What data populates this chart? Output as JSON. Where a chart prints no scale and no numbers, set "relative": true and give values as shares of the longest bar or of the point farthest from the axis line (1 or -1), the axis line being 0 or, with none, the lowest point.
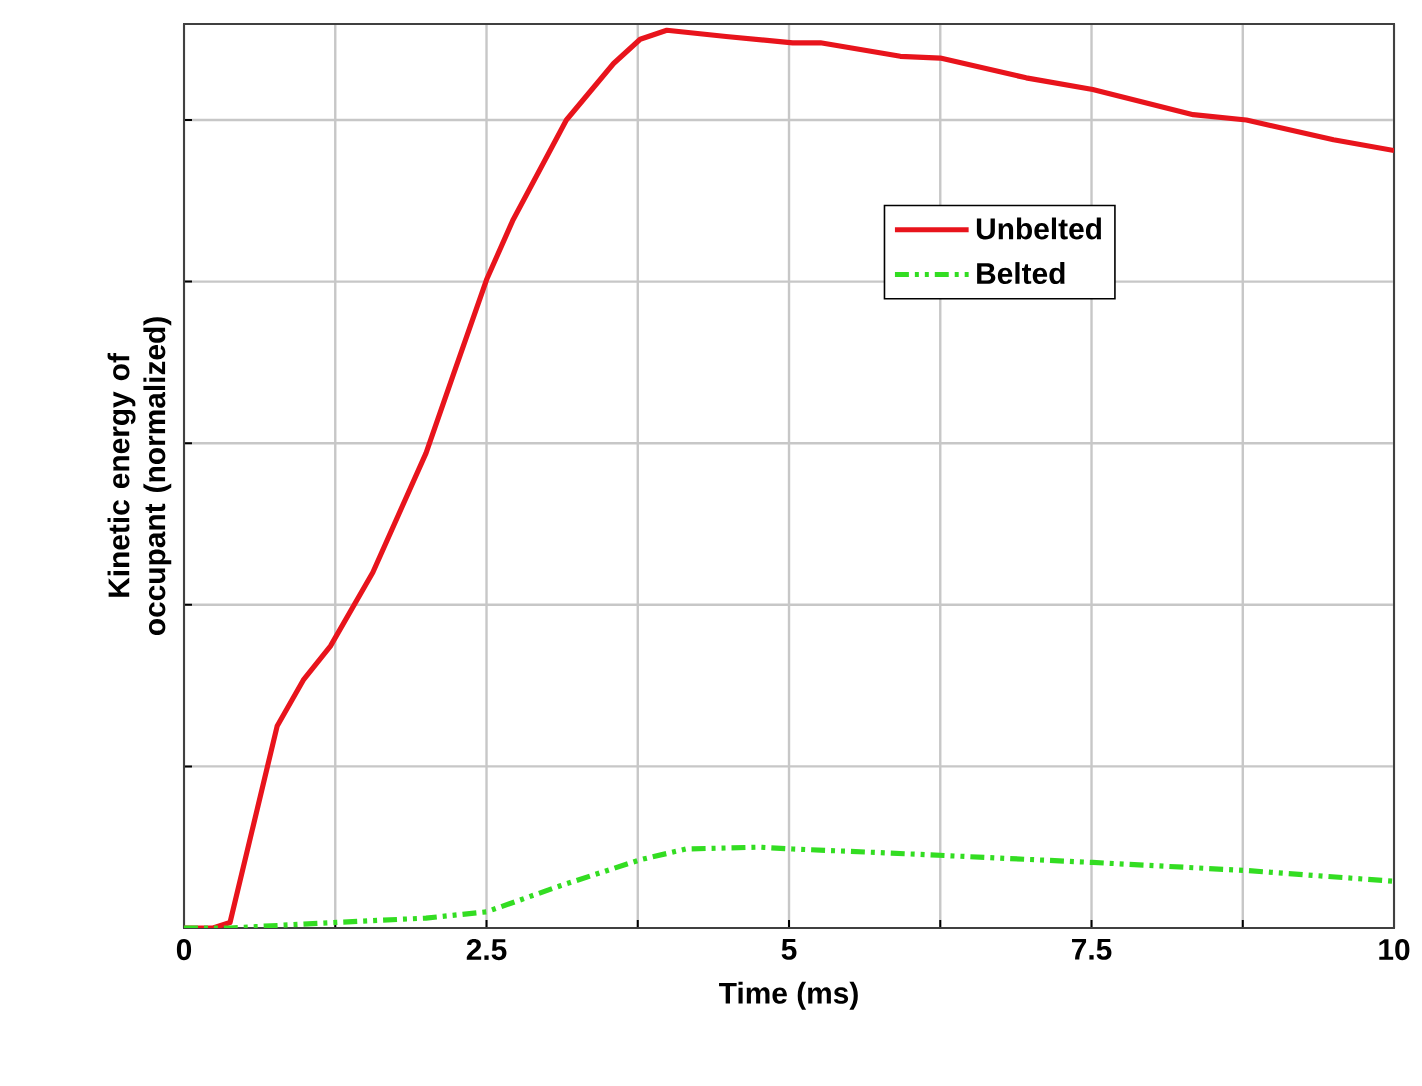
{
  "chart_data": {
    "type": "line",
    "relative": true,
    "xlabel": "Time (ms)",
    "ylabel": "Kinetic energy of occupant (normalized)",
    "xlim": [
      0,
      10
    ],
    "xticks": [
      0,
      {
        "value": 1.25,
        "label": null
      },
      2.5,
      {
        "value": 3.75,
        "label": null
      },
      5,
      {
        "value": 6.25,
        "label": null
      },
      7.5,
      {
        "value": 8.75,
        "label": null
      },
      10
    ],
    "grid": true,
    "legend": "top right",
    "tick_labels": "x",
    "series": [
      {
        "name": "Unbelted",
        "color": "#e8141c",
        "line_style": "solid",
        "x": [
          0,
          0.24,
          0.38,
          0.77,
          0.99,
          1.21,
          1.56,
          2.0,
          2.23,
          2.5,
          2.72,
          3.16,
          3.55,
          3.77,
          3.99,
          4.48,
          5.03,
          5.26,
          5.92,
          6.25,
          6.96,
          7.51,
          8.34,
          8.78,
          9.5,
          10.0
        ],
        "values": [
          0,
          0,
          0.006,
          0.225,
          0.277,
          0.314,
          0.396,
          0.529,
          0.618,
          0.722,
          0.789,
          0.9,
          0.963,
          0.99,
          1.0,
          0.993,
          0.986,
          0.986,
          0.971,
          0.969,
          0.947,
          0.934,
          0.906,
          0.9,
          0.878,
          0.866
        ]
      },
      {
        "name": "Belted",
        "color": "#33dd22",
        "line_style": "dashdotdotted",
        "x": [
          0,
          0.38,
          1.23,
          2.0,
          2.5,
          3.11,
          3.77,
          4.15,
          4.76,
          5.03,
          6.08,
          7.51,
          8.78,
          10.0
        ],
        "values": [
          0,
          0,
          0.006,
          0.011,
          0.018,
          0.047,
          0.076,
          0.088,
          0.09,
          0.088,
          0.082,
          0.073,
          0.064,
          0.052
        ]
      }
    ]
  }
}
